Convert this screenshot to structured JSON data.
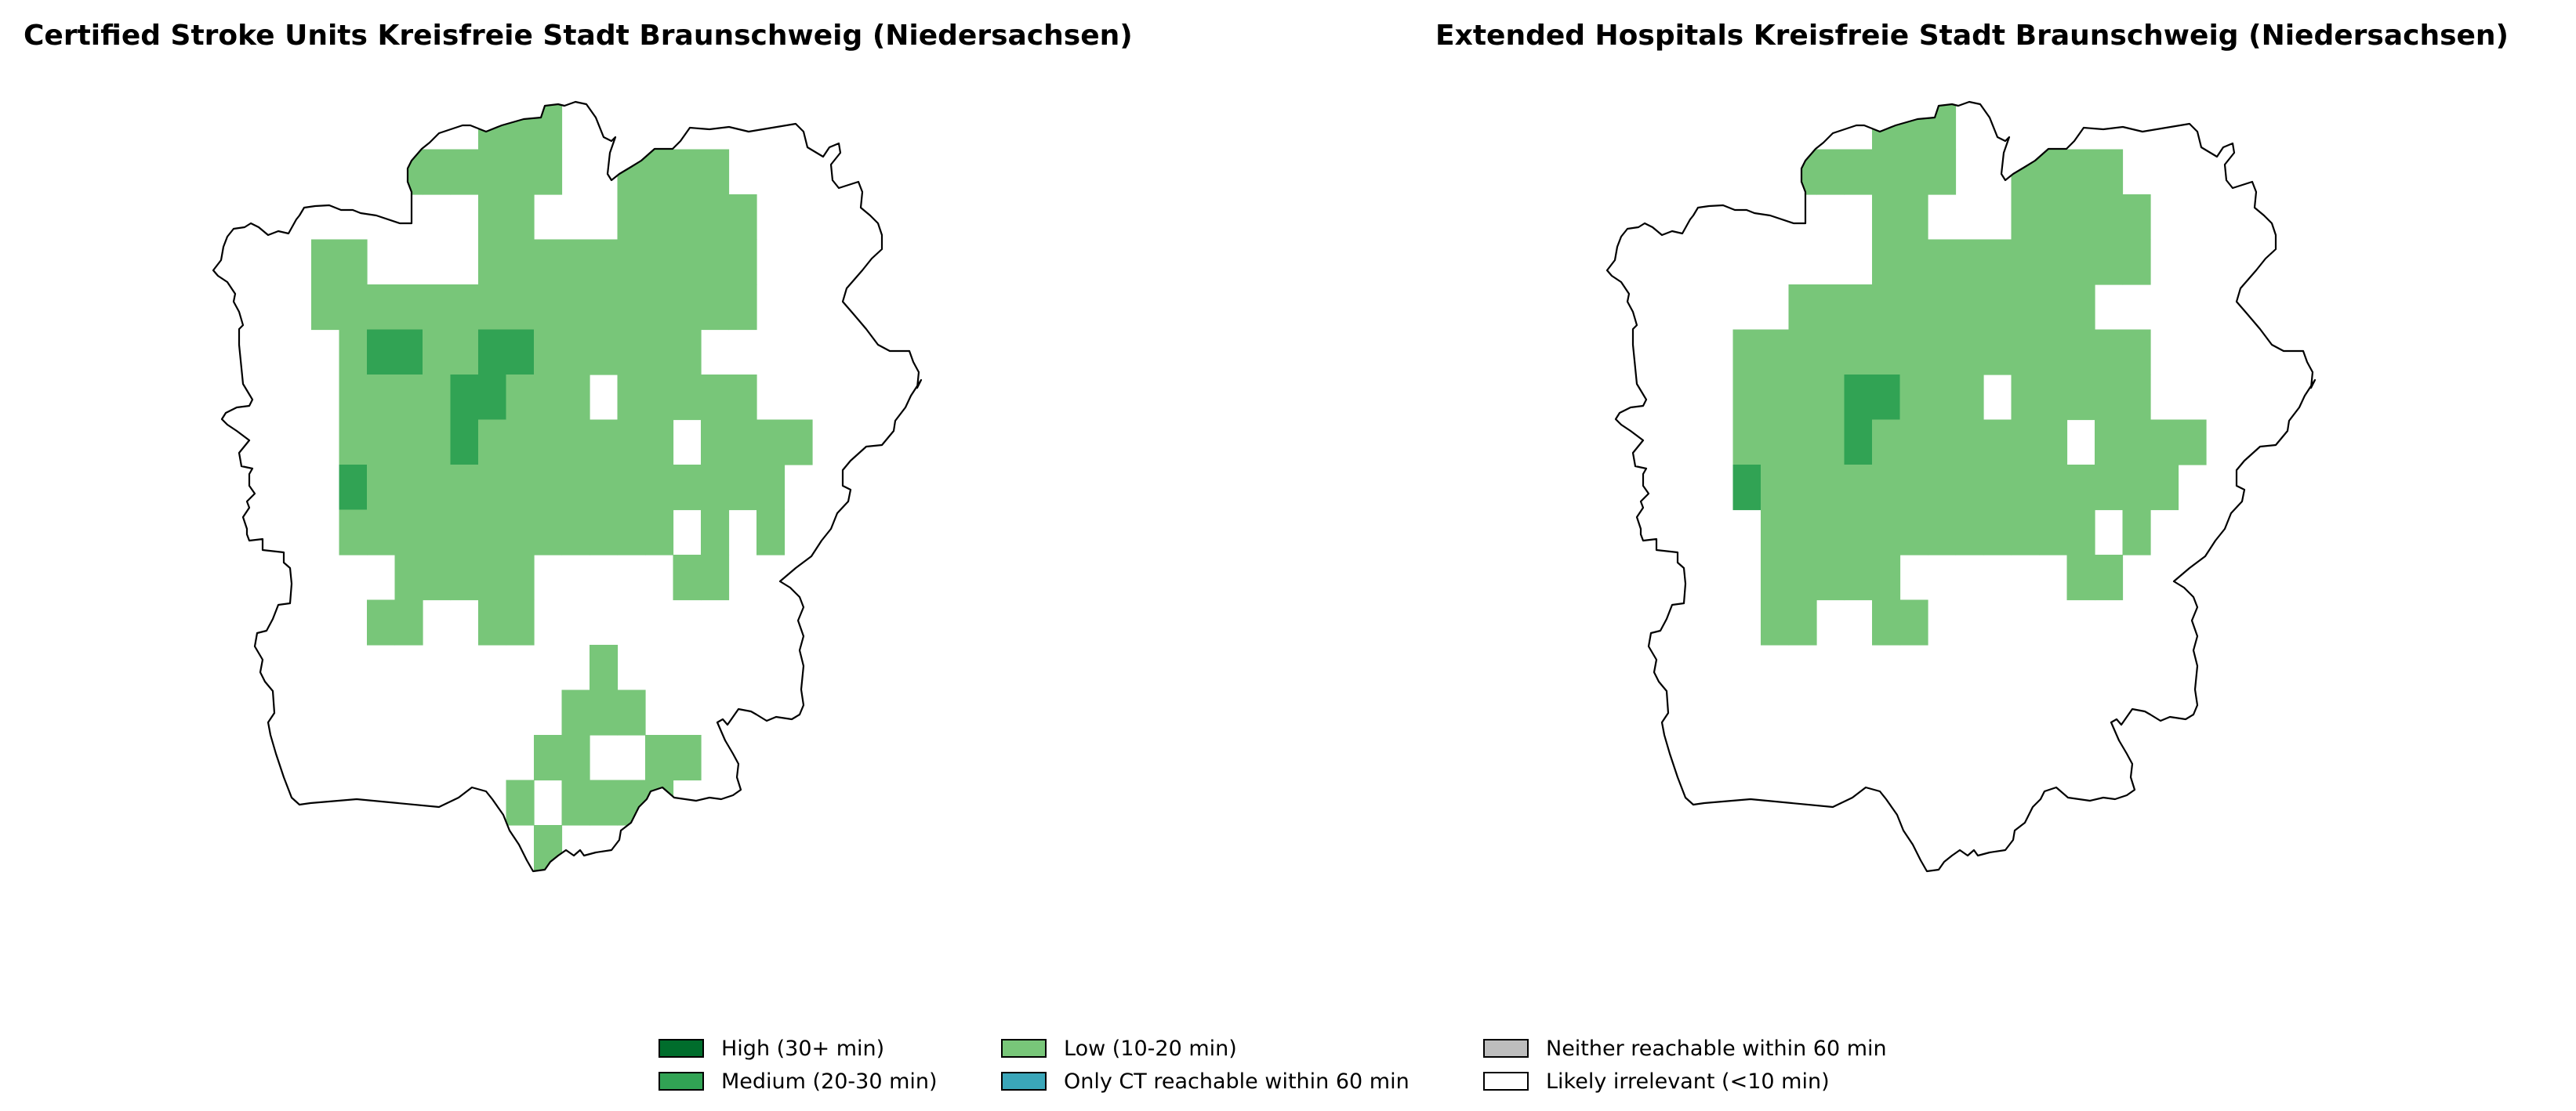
{
  "maps": [
    {
      "id": "left",
      "title": "Certified Stroke Units Kreisfreie Stadt Braunschweig (Niedersachsen)",
      "rows": [
        "......LLLL..........",
        "...........LL.......",
        "..........LLL.......",
        "LLL.L.LLLLLLLLL.....",
        "LLLLLLLLLLLLLLLLLLL.",
        "LLLLLLLLLLLLLLLLLLL.",
        ".LLL.MMLL.MMLLLLLLL.",
        ".LLLLLLLLLLLLLLLLLLL",
        ".LLLLLLLLLLLLLLLLLLL",
        ".LLLLLLLLLLLLLLLLLLL",
        ".L..LLLLLLLLLLLLLLLLL.",
        ".L..LLLLLMLLLLLLLLLLL.",
        ".LLLLLLMMLLLLLL.LLLLLL",
        ".LLLLLMMMLLLLLL.LLLLLL",
        ".LLLLLMLLLLLLLLLLLLL..",
        ".LMLLLLLLLLLLLLLLLLLL..",
        "..LLLLLLLLLLLLL.L......",
        "..LLLLLLLLLLLLLLL......",
        "...LLLL.....LLL.L......",
        "...LLLL.....LL.........",
        "...LL...LLL............",
        "............L..........",
        "............L..........",
        "............LLL........",
        "..........LL..LL.......",
        "..........LL..LL.......",
        ".......L.LLLLL.........",
        "........LL.............",
        "..........L............"
      ]
    },
    {
      "id": "right",
      "title": "Extended Hospitals Kreisfreie Stadt Braunschweig (Niedersachsen)",
      "rows": []
    }
  ],
  "legend": [
    {
      "label": "High (30+ min)",
      "color": "#006d2c"
    },
    {
      "label": "Medium (20-30 min)",
      "color": "#31a354"
    },
    {
      "label": "Low (10-20 min)",
      "color": "#78c679"
    },
    {
      "label": "Only CT reachable within 60 min",
      "color": "#3aa6b9"
    },
    {
      "label": "Neither reachable within 60 min",
      "color": "#bdbdbd"
    },
    {
      "label": "Likely irrelevant (<10 min)",
      "color": "#ffffff"
    }
  ]
}
